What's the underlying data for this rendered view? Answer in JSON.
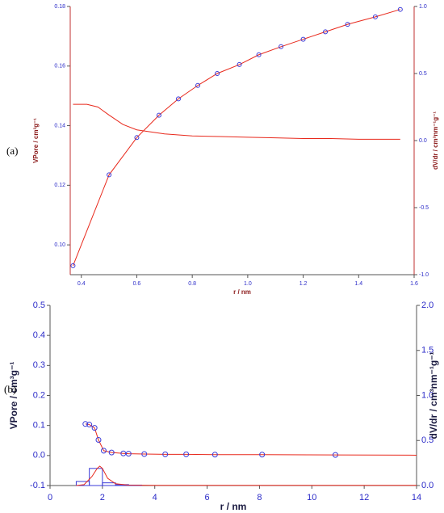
{
  "chart_data": [
    {
      "type": "line",
      "panel_label": "(a)",
      "x_label": "r / nm",
      "y_label": "VPore / cm³g⁻¹",
      "y2_label": "dV/dr / cm³nm⁻¹g⁻¹",
      "xlim": [
        0.36,
        1.6
      ],
      "xticks": [
        0.4,
        0.6,
        0.8,
        {
          "value": 1,
          "label": "1.0"
        },
        1.2,
        1.4,
        1.6
      ],
      "ylim": [
        0.09,
        0.18
      ],
      "yticks": [
        {
          "value": 0.1,
          "label": "0.10"
        },
        0.12,
        0.14,
        0.16,
        0.18
      ],
      "y2lim": [
        -1,
        1
      ],
      "y2ticks": [
        {
          "value": -1,
          "label": "-1.0"
        },
        -0.5,
        {
          "value": 0,
          "label": "0.0"
        },
        0.5,
        {
          "value": 1,
          "label": "1.0"
        }
      ],
      "tick_color": "#2b2bc8",
      "axis_label_color": "#8b1a1a",
      "series": [
        {
          "type": "line",
          "markers": true,
          "color": "#e8291c",
          "marker_color": "#3b3bd8",
          "x": [
            0.37,
            0.5,
            0.6,
            0.68,
            0.75,
            0.82,
            0.89,
            0.97,
            1.04,
            1.12,
            1.2,
            1.28,
            1.36,
            1.46,
            1.55
          ],
          "values": [
            0.093,
            0.1235,
            0.136,
            0.1435,
            0.149,
            0.1535,
            0.1575,
            0.1605,
            0.1638,
            0.1665,
            0.169,
            0.1715,
            0.174,
            0.1765,
            0.179
          ]
        },
        {
          "type": "line",
          "axis": "y2",
          "color": "#e8291c",
          "x": [
            0.37,
            0.42,
            0.46,
            0.5,
            0.55,
            0.6,
            0.7,
            0.8,
            0.9,
            1.0,
            1.1,
            1.2,
            1.3,
            1.4,
            1.55
          ],
          "values": [
            0.27,
            0.27,
            0.25,
            0.19,
            0.12,
            0.08,
            0.05,
            0.035,
            0.03,
            0.025,
            0.02,
            0.015,
            0.015,
            0.01,
            0.01
          ]
        }
      ]
    },
    {
      "type": "line",
      "panel_label": "(b)",
      "x_label": "r / nm",
      "y_label": "VPore / cm³g⁻¹",
      "y2_label": "dV/dr / cm³nm⁻¹g⁻¹",
      "xlim": [
        0,
        14
      ],
      "xticks": [
        0,
        2,
        4,
        6,
        8,
        10,
        12,
        14
      ],
      "ylim": [
        -0.1,
        0.5
      ],
      "yticks": [
        -0.1,
        {
          "value": 0,
          "label": "0.0"
        },
        0.1,
        0.2,
        0.3,
        0.4,
        0.5
      ],
      "y2lim": [
        0,
        2
      ],
      "y2ticks": [
        {
          "value": 0,
          "label": "0.0"
        },
        0.5,
        {
          "value": 1,
          "label": "1.0"
        },
        1.5,
        {
          "value": 2,
          "label": "2.0"
        }
      ],
      "tick_color": "#2b2bc8",
      "axis_label_color": "#1a1a40",
      "series": [
        {
          "type": "line",
          "markers": true,
          "color": "#e8291c",
          "marker_color": "#3b3bd8",
          "x": [
            1.35,
            1.5,
            1.7,
            1.85,
            2.05,
            2.35,
            2.8,
            3.0,
            3.6,
            4.4,
            5.2,
            6.3,
            8.1,
            10.9
          ],
          "values": [
            0.105,
            0.103,
            0.092,
            0.052,
            0.016,
            0.01,
            0.007,
            0.006,
            0.005,
            0.004,
            0.004,
            0.003,
            0.003,
            0.002
          ]
        },
        {
          "type": "line",
          "color": "#e8291c",
          "x": [
            10.9,
            14
          ],
          "values": [
            0.002,
            0.001
          ]
        },
        {
          "type": "histogram",
          "axis": "y2",
          "color": "#3b3bd8",
          "bins": [
            1.0,
            1.5,
            2.0,
            2.5,
            3.0,
            3.5
          ],
          "values": [
            0.045,
            0.19,
            0.03,
            0.01,
            0.005
          ]
        },
        {
          "type": "line",
          "axis": "y2",
          "color": "#e8291c",
          "x": [
            1.0,
            1.3,
            1.6,
            1.8,
            1.9,
            2.0,
            2.2,
            2.5,
            3.0,
            4.0,
            14.0
          ],
          "values": [
            0,
            0.01,
            0.1,
            0.19,
            0.215,
            0.19,
            0.08,
            0.02,
            0.005,
            0.002,
            0.002
          ]
        }
      ]
    }
  ]
}
